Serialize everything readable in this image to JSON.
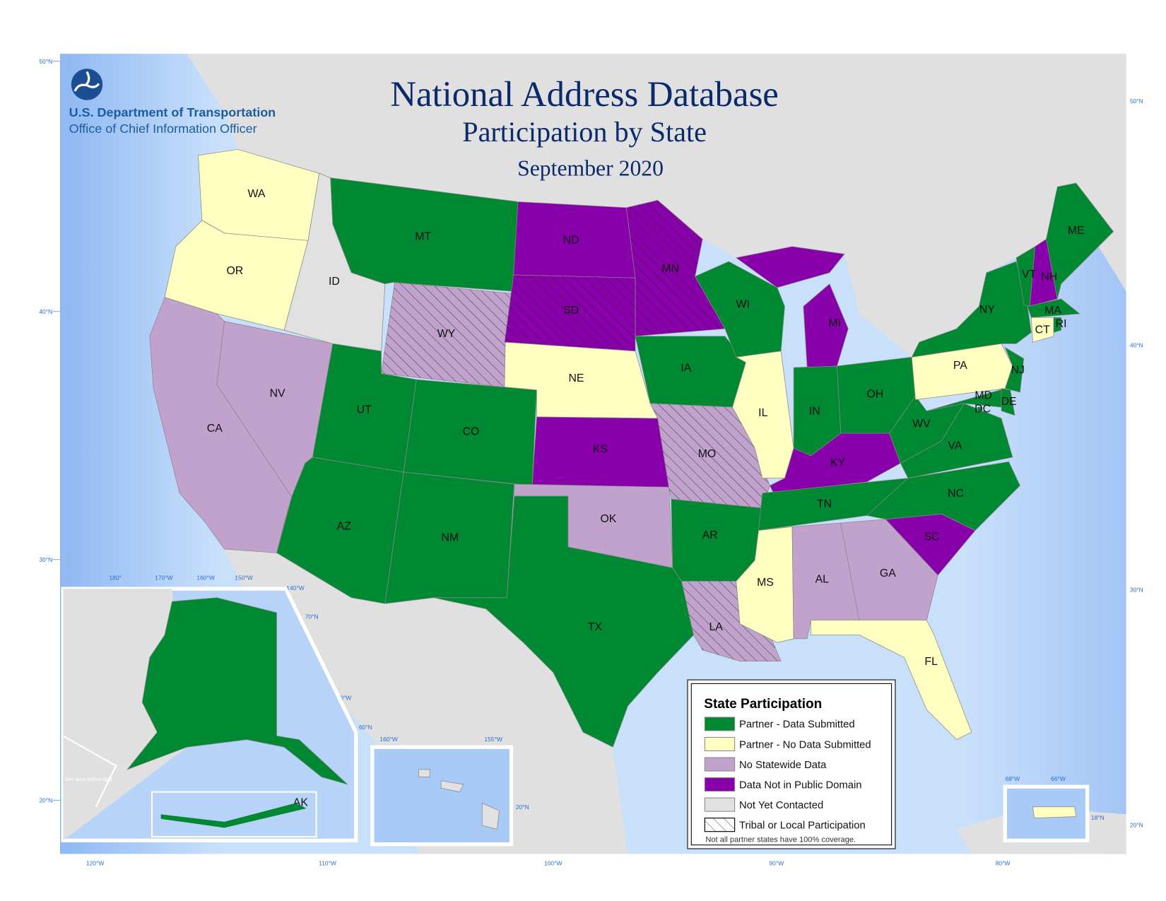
{
  "header": {
    "agency": "U.S. Department of Transportation",
    "office": "Office of Chief Information Officer",
    "title": "National Address Database",
    "subtitle": "Participation by State",
    "date": "September 2020"
  },
  "colors": {
    "partner_data": "#008833",
    "partner_no_data": "#ffffc2",
    "no_statewide": "#c0a2cc",
    "not_public": "#8800aa",
    "not_contacted": "#e1e1e1",
    "ocean": "#a9c9f7",
    "ocean_shallow": "#d6e8fb"
  },
  "legend": {
    "title": "State Participation",
    "items": [
      {
        "key": "partner_data",
        "label": "Partner - Data Submitted"
      },
      {
        "key": "partner_no_data",
        "label": "Partner - No Data Submitted"
      },
      {
        "key": "no_statewide",
        "label": "No Statewide Data"
      },
      {
        "key": "not_public",
        "label": "Data Not in Public Domain"
      },
      {
        "key": "not_contacted",
        "label": "Not Yet Contacted"
      },
      {
        "key": "hatch",
        "label": "Tribal or Local Participation"
      }
    ],
    "note": "Not all partner states have 100% coverage."
  },
  "states": [
    {
      "abbr": "WA",
      "status": "partner_no_data"
    },
    {
      "abbr": "OR",
      "status": "partner_no_data"
    },
    {
      "abbr": "CA",
      "status": "no_statewide"
    },
    {
      "abbr": "NV",
      "status": "no_statewide"
    },
    {
      "abbr": "ID",
      "status": "not_contacted"
    },
    {
      "abbr": "MT",
      "status": "partner_data"
    },
    {
      "abbr": "WY",
      "status": "no_statewide",
      "tribal_local": true
    },
    {
      "abbr": "UT",
      "status": "partner_data"
    },
    {
      "abbr": "CO",
      "status": "partner_data"
    },
    {
      "abbr": "AZ",
      "status": "partner_data"
    },
    {
      "abbr": "NM",
      "status": "partner_data"
    },
    {
      "abbr": "ND",
      "status": "not_public"
    },
    {
      "abbr": "SD",
      "status": "not_public",
      "tribal_local": true
    },
    {
      "abbr": "NE",
      "status": "partner_no_data"
    },
    {
      "abbr": "KS",
      "status": "not_public"
    },
    {
      "abbr": "OK",
      "status": "no_statewide"
    },
    {
      "abbr": "TX",
      "status": "partner_data"
    },
    {
      "abbr": "MN",
      "status": "not_public",
      "tribal_local": true
    },
    {
      "abbr": "IA",
      "status": "partner_data"
    },
    {
      "abbr": "MO",
      "status": "no_statewide",
      "tribal_local": true
    },
    {
      "abbr": "AR",
      "status": "partner_data"
    },
    {
      "abbr": "LA",
      "status": "no_statewide",
      "tribal_local": true
    },
    {
      "abbr": "WI",
      "status": "partner_data"
    },
    {
      "abbr": "IL",
      "status": "partner_no_data"
    },
    {
      "abbr": "MI",
      "status": "not_public"
    },
    {
      "abbr": "IN",
      "status": "partner_data"
    },
    {
      "abbr": "OH",
      "status": "partner_data"
    },
    {
      "abbr": "KY",
      "status": "not_public"
    },
    {
      "abbr": "TN",
      "status": "partner_data"
    },
    {
      "abbr": "MS",
      "status": "partner_no_data"
    },
    {
      "abbr": "AL",
      "status": "no_statewide"
    },
    {
      "abbr": "GA",
      "status": "no_statewide"
    },
    {
      "abbr": "FL",
      "status": "partner_no_data"
    },
    {
      "abbr": "SC",
      "status": "not_public"
    },
    {
      "abbr": "NC",
      "status": "partner_data"
    },
    {
      "abbr": "VA",
      "status": "partner_data"
    },
    {
      "abbr": "WV",
      "status": "partner_data"
    },
    {
      "abbr": "PA",
      "status": "partner_no_data"
    },
    {
      "abbr": "NY",
      "status": "partner_data"
    },
    {
      "abbr": "NJ",
      "status": "partner_data"
    },
    {
      "abbr": "MD",
      "status": "partner_data"
    },
    {
      "abbr": "DE",
      "status": "partner_data"
    },
    {
      "abbr": "DC",
      "status": "partner_data"
    },
    {
      "abbr": "VT",
      "status": "partner_data"
    },
    {
      "abbr": "NH",
      "status": "not_public"
    },
    {
      "abbr": "ME",
      "status": "partner_data"
    },
    {
      "abbr": "MA",
      "status": "partner_data"
    },
    {
      "abbr": "CT",
      "status": "partner_no_data"
    },
    {
      "abbr": "RI",
      "status": "partner_data"
    },
    {
      "abbr": "AK",
      "status": "partner_data"
    },
    {
      "abbr": "HI",
      "status": "not_contacted"
    },
    {
      "abbr": "PR",
      "status": "partner_no_data"
    }
  ],
  "inset_notes": {
    "ak_note": "See area below right",
    "ak_sub_label": "AK"
  },
  "graticule": {
    "main_lat": [
      "50°N",
      "40°N",
      "30°N",
      "20°N"
    ],
    "right_lat": [
      "50°N",
      "40°N",
      "30°N",
      "20°N"
    ],
    "main_lon": [
      "120°W",
      "110°W",
      "100°W",
      "90°W",
      "80°W"
    ],
    "ak_lon": [
      "180°",
      "170°W",
      "160°W",
      "150°W",
      "140°W",
      "130°W"
    ],
    "ak_lat": [
      "70°N",
      "60°N"
    ],
    "ak_sub_lon": [
      "180°",
      "170°W"
    ],
    "hi_lon": [
      "160°W",
      "155°W"
    ],
    "hi_lat": "20°N",
    "pr_lon": [
      "68°W",
      "66°W"
    ],
    "pr_lat": "18°N"
  }
}
